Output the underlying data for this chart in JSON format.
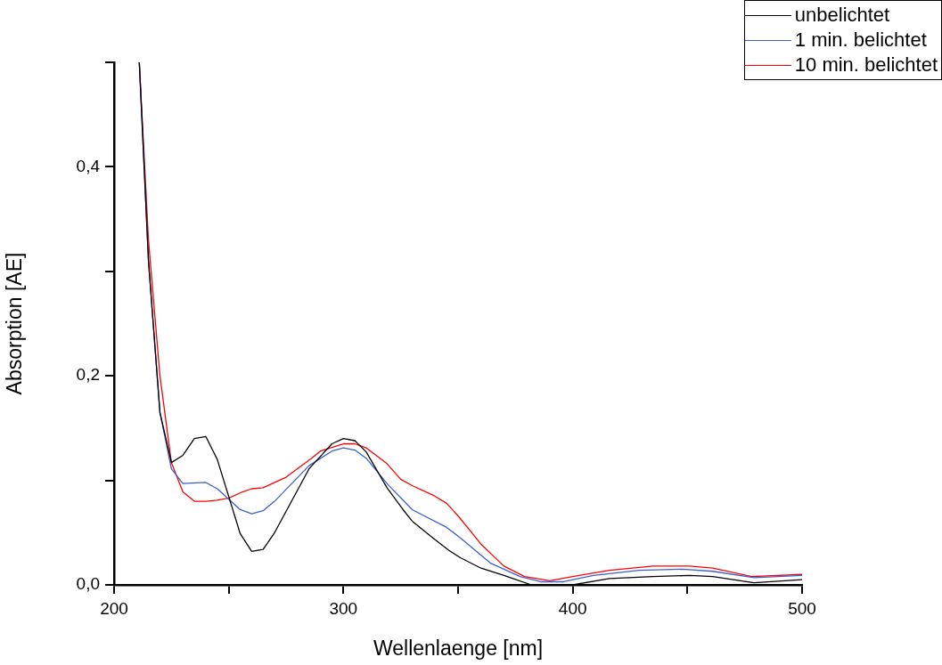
{
  "chart_data": {
    "type": "line",
    "xlabel": "Wellenlaenge [nm]",
    "ylabel": "Absorption [AE]",
    "xlim": [
      200,
      500
    ],
    "ylim": [
      0,
      0.5
    ],
    "xticks": [
      200,
      {
        "value": 250,
        "label": null
      },
      300,
      {
        "value": 350,
        "label": null
      },
      400,
      {
        "value": 450,
        "label": null
      },
      500
    ],
    "yticks": [
      {
        "value": 0,
        "label": "0,0"
      },
      {
        "value": 0.1,
        "label": null
      },
      {
        "value": 0.2,
        "label": "0,2"
      },
      {
        "value": 0.3,
        "label": null
      },
      {
        "value": 0.4,
        "label": "0,4"
      },
      {
        "value": 0.5,
        "label": null
      }
    ],
    "legend": "top right",
    "grid": false,
    "marker": "none",
    "line_style": "solid",
    "series": [
      {
        "name": "unbelichtet",
        "color": "#000000",
        "x": [
          211,
          215,
          220,
          225,
          230,
          235,
          240,
          245,
          255,
          260,
          265,
          270,
          285,
          295,
          300,
          305,
          310,
          319,
          326,
          330,
          339,
          346,
          351,
          360,
          370,
          382,
          400,
          416,
          435,
          451,
          461,
          479,
          500
        ],
        "values": [
          0.5,
          0.31,
          0.165,
          0.117,
          0.124,
          0.14,
          0.142,
          0.12,
          0.049,
          0.032,
          0.034,
          0.05,
          0.111,
          0.135,
          0.14,
          0.138,
          0.127,
          0.093,
          0.072,
          0.061,
          0.045,
          0.033,
          0.026,
          0.016,
          0.009,
          0.0,
          0.0,
          0.006,
          0.008,
          0.009,
          0.008,
          0.002,
          0.005
        ]
      },
      {
        "name": "1 min. belichtet",
        "color": "#3a5fcd",
        "x": [
          211,
          215,
          220,
          225,
          230,
          240,
          245,
          250,
          255,
          260,
          265,
          270,
          285,
          295,
          300,
          305,
          310,
          319,
          330,
          345,
          351,
          364,
          377,
          386,
          396,
          409,
          429,
          448,
          461,
          479,
          500
        ],
        "values": [
          0.5,
          0.31,
          0.165,
          0.111,
          0.097,
          0.098,
          0.092,
          0.082,
          0.072,
          0.068,
          0.071,
          0.08,
          0.114,
          0.128,
          0.131,
          0.129,
          0.121,
          0.097,
          0.072,
          0.055,
          0.045,
          0.021,
          0.008,
          0.003,
          0.003,
          0.009,
          0.014,
          0.015,
          0.013,
          0.007,
          0.009
        ]
      },
      {
        "name": "10 min. belichtet",
        "color": "#ff0000",
        "x": [
          211,
          215,
          220,
          225,
          230,
          235,
          240,
          245,
          250,
          256,
          260,
          265,
          275,
          286,
          290,
          300,
          305,
          310,
          319,
          325,
          330,
          339,
          345,
          350,
          360,
          370,
          379,
          390,
          400,
          416,
          435,
          451,
          461,
          478,
          500
        ],
        "values": [
          0.5,
          0.33,
          0.2,
          0.117,
          0.089,
          0.08,
          0.08,
          0.081,
          0.083,
          0.089,
          0.092,
          0.093,
          0.103,
          0.121,
          0.128,
          0.135,
          0.135,
          0.131,
          0.116,
          0.101,
          0.095,
          0.086,
          0.078,
          0.066,
          0.039,
          0.018,
          0.008,
          0.004,
          0.008,
          0.014,
          0.018,
          0.018,
          0.016,
          0.008,
          0.01
        ]
      }
    ]
  }
}
